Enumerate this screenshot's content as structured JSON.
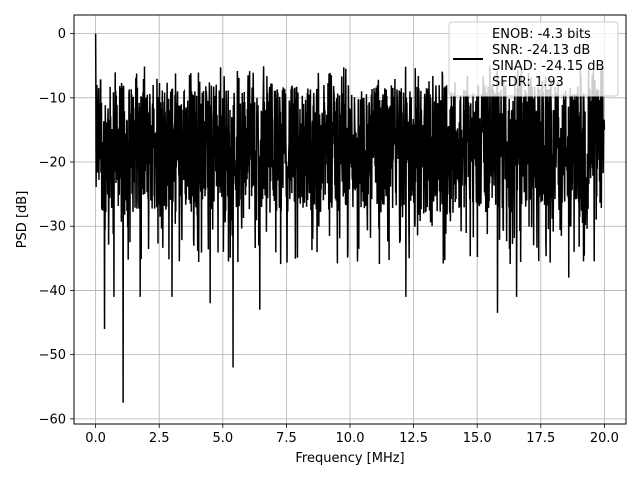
{
  "chart_data": {
    "type": "line",
    "title": "",
    "xlabel": "Frequency [MHz]",
    "ylabel": "PSD [dB]",
    "xlim": [
      -0.85,
      20.85
    ],
    "ylim": [
      -60.8,
      2.9
    ],
    "x_ticks": [
      0.0,
      2.5,
      5.0,
      7.5,
      10.0,
      12.5,
      15.0,
      17.5,
      20.0
    ],
    "x_tick_labels": [
      "0.0",
      "2.5",
      "5.0",
      "7.5",
      "10.0",
      "12.5",
      "15.0",
      "17.5",
      "20.0"
    ],
    "y_ticks": [
      0,
      -10,
      -20,
      -30,
      -40,
      -50,
      -60
    ],
    "y_tick_labels": [
      "0",
      "−10",
      "−20",
      "−30",
      "−40",
      "−50",
      "−60"
    ],
    "grid": true,
    "legend_position": "top-right",
    "line_color": "#000000",
    "series": [
      {
        "x_start": 0.0,
        "x_end": 20.0,
        "num_points": 2000,
        "approx_upper_envelope_db": -8,
        "approx_lower_envelope_db": -28,
        "notable_points": [
          {
            "x": 0.0,
            "y": 0
          },
          {
            "x": 0.05,
            "y": -8
          },
          {
            "x": 0.35,
            "y": -46
          },
          {
            "x": 0.72,
            "y": -41
          },
          {
            "x": 1.08,
            "y": -57.5
          },
          {
            "x": 1.75,
            "y": -41
          },
          {
            "x": 3.0,
            "y": -41
          },
          {
            "x": 4.5,
            "y": -42
          },
          {
            "x": 5.4,
            "y": -52
          },
          {
            "x": 6.45,
            "y": -43
          },
          {
            "x": 12.2,
            "y": -41
          },
          {
            "x": 15.8,
            "y": -43.5
          },
          {
            "x": 16.55,
            "y": -41
          },
          {
            "x": 18.6,
            "y": -38
          },
          {
            "x": 20.0,
            "y": -15
          }
        ]
      }
    ],
    "legend_entries": [
      "ENOB: -4.3 bits",
      "SNR: -24.13 dB",
      "SINAD: -24.15 dB",
      "SFDR: 1.93"
    ]
  }
}
